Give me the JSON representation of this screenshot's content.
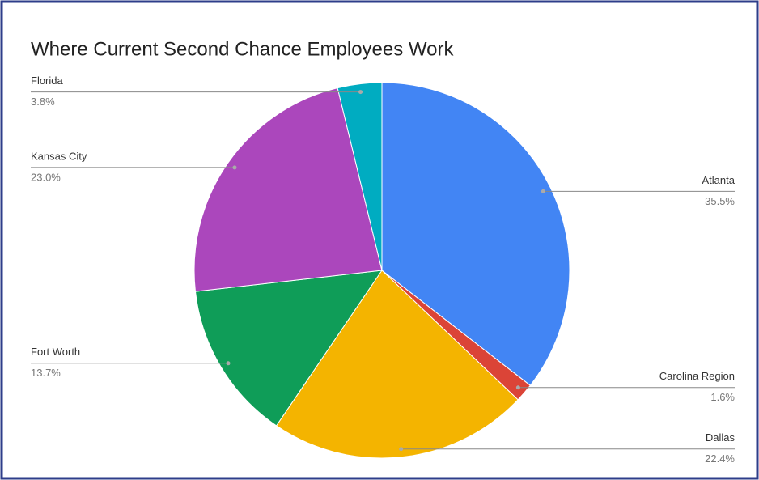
{
  "chart_data": {
    "type": "pie",
    "title": "Where Current Second Chance Employees Work",
    "categories": [
      "Atlanta",
      "Carolina Region",
      "Dallas",
      "Fort Worth",
      "Kansas City",
      "Florida"
    ],
    "values": [
      35.5,
      1.6,
      22.4,
      13.7,
      23.0,
      3.8
    ],
    "value_labels": [
      "35.5%",
      "1.6%",
      "22.4%",
      "13.7%",
      "23.0%",
      "3.8%"
    ],
    "colors": [
      "#4285f4",
      "#db4437",
      "#f4b400",
      "#0f9d58",
      "#ab47bc",
      "#00acc1"
    ]
  }
}
